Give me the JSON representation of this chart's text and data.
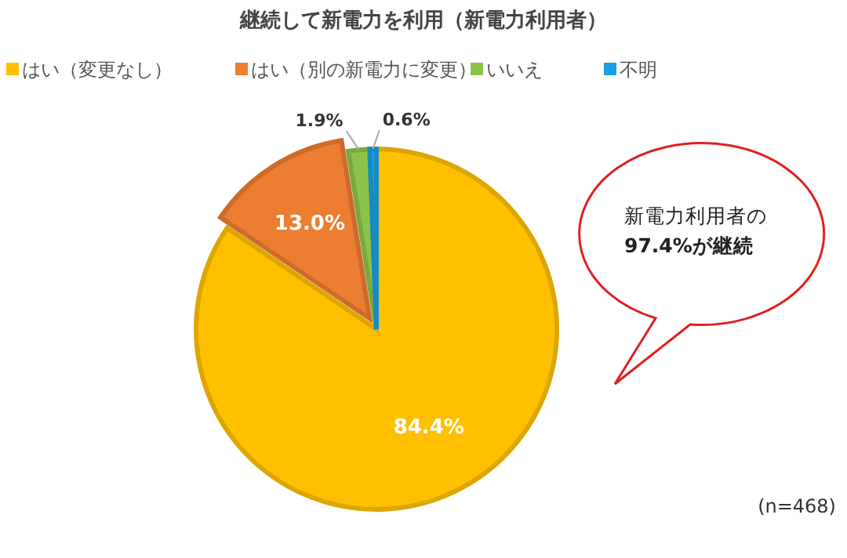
{
  "chart_data": {
    "type": "pie",
    "title": "継続して新電力を利用（新電力利用者）",
    "categories": [
      "はい（変更なし）",
      "はい（別の新電力に変更）",
      "いいえ",
      "不明"
    ],
    "values": [
      84.4,
      13.0,
      1.9,
      0.6
    ],
    "colors": [
      "#ffc000",
      "#ed7d31",
      "#8bc34a",
      "#1a9fe0"
    ],
    "value_labels": [
      "84.4%",
      "13.0%",
      "1.9%",
      "0.6%"
    ],
    "legend": "top",
    "annotations": [
      "新電力利用者の\n97.4%が継続",
      "(n=468)"
    ]
  }
}
